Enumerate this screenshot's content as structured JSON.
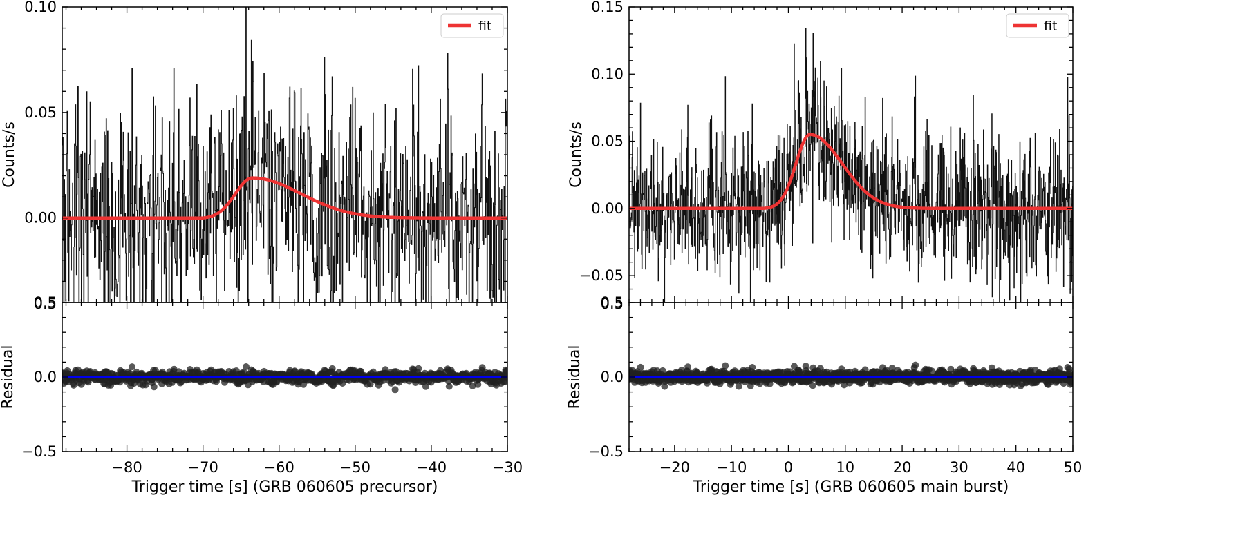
{
  "chart_data": [
    {
      "type": "line",
      "panel": "left",
      "xlim": [
        -88.5,
        -30
      ],
      "xlabel": "Trigger time [s] (GRB 060605 precursor)",
      "x_ticks": [
        -80,
        -70,
        -60,
        -50,
        -40,
        -30
      ],
      "x_tick_labels": [
        "−80",
        "−70",
        "−60",
        "−50",
        "−40",
        "−30"
      ],
      "grid": false,
      "top": {
        "ylabel": "Counts/s",
        "ylim": [
          -0.04,
          0.1
        ],
        "y_ticks": [
          0.0,
          0.05,
          0.1
        ],
        "y_tick_labels": [
          "0.00",
          "0.05",
          "0.10"
        ],
        "bottom_edge_label": "0.5",
        "legend": {
          "position": "top-right",
          "entries": [
            "fit"
          ]
        },
        "series": [
          {
            "name": "data",
            "style": "step",
            "color": "#111111",
            "noise_sigma": 0.028,
            "dt": 0.064
          },
          {
            "name": "fit",
            "style": "line",
            "color": "#ee3333",
            "model": "fred",
            "t0": -70.0,
            "peak": 0.019,
            "t_peak": -63.5,
            "rise": 3.2,
            "decay": 9.0,
            "x": [
              -88.5,
              -70.0,
              -68.0,
              -66.0,
              -64.0,
              -63.5,
              -60.0,
              -55.0,
              -50.0,
              -45.0,
              -40.0,
              -35.0,
              -30.0
            ],
            "y": [
              0.0,
              0.0,
              0.007,
              0.015,
              0.0189,
              0.019,
              0.017,
              0.0115,
              0.0068,
              0.0035,
              0.0016,
              0.0006,
              0.0002
            ]
          }
        ]
      },
      "bottom": {
        "ylabel": "Residual",
        "ylim": [
          -0.5,
          0.5
        ],
        "y_ticks": [
          -0.5,
          0.0,
          0.5
        ],
        "y_tick_labels": [
          "−0.5",
          "0.0",
          "0.5"
        ],
        "series": [
          {
            "name": "residual",
            "style": "scatter",
            "color": "#222222",
            "spread": 0.025
          },
          {
            "name": "zero",
            "style": "line",
            "color": "#0000ee",
            "y": 0.0
          }
        ]
      }
    },
    {
      "type": "line",
      "panel": "right",
      "xlim": [
        -28,
        50
      ],
      "xlabel": "Trigger time [s] (GRB 060605 main burst)",
      "x_ticks": [
        -20,
        -10,
        0,
        10,
        20,
        30,
        40,
        50
      ],
      "x_tick_labels": [
        "−20",
        "−10",
        "0",
        "10",
        "20",
        "30",
        "40",
        "50"
      ],
      "grid": false,
      "top": {
        "ylabel": "Counts/s",
        "ylim": [
          -0.07,
          0.15
        ],
        "y_ticks": [
          -0.05,
          0.0,
          0.05,
          0.1,
          0.15
        ],
        "y_tick_labels": [
          "−0.05",
          "0.00",
          "0.05",
          "0.10",
          "0.15"
        ],
        "bottom_edge_label": "0.5",
        "legend": {
          "position": "top-right",
          "entries": [
            "fit"
          ]
        },
        "series": [
          {
            "name": "data",
            "style": "step",
            "color": "#111111",
            "noise_sigma": 0.028,
            "dt": 0.064
          },
          {
            "name": "fit",
            "style": "line",
            "color": "#ee3333",
            "model": "fred",
            "t0": -4.5,
            "peak": 0.055,
            "t_peak": 3.8,
            "rise": 3.5,
            "decay": 8.0,
            "x": [
              -28,
              -4.5,
              -2.0,
              0.0,
              2.0,
              3.8,
              6.0,
              10.0,
              15.0,
              20.0,
              25.0,
              30.0,
              40.0,
              50.0
            ],
            "y": [
              0.0,
              0.0,
              0.015,
              0.038,
              0.052,
              0.055,
              0.053,
              0.042,
              0.025,
              0.012,
              0.005,
              0.002,
              0.0003,
              0.0
            ]
          }
        ]
      },
      "bottom": {
        "ylabel": "Residual",
        "ylim": [
          -0.5,
          0.5
        ],
        "y_ticks": [
          -0.5,
          0.0,
          0.5
        ],
        "y_tick_labels": [
          "−0.5",
          "0.0",
          "0.5"
        ],
        "series": [
          {
            "name": "residual",
            "style": "scatter",
            "color": "#222222",
            "spread": 0.025
          },
          {
            "name": "zero",
            "style": "line",
            "color": "#0000ee",
            "y": 0.0
          }
        ]
      }
    }
  ]
}
